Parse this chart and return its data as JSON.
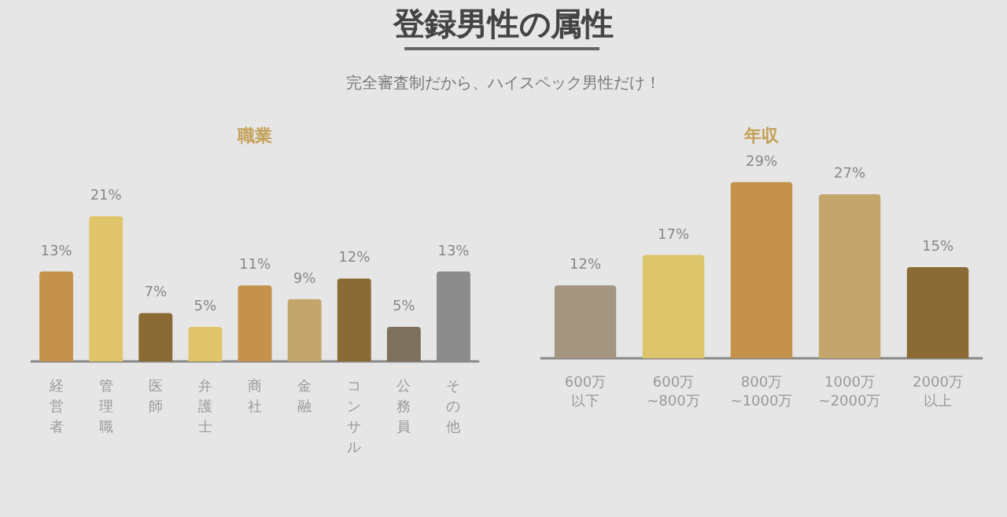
{
  "chart_data": [
    {
      "type": "other",
      "title": "登録男性の属性",
      "subtitle": "完全審査制だから、ハイスペック男性だけ！"
    },
    {
      "type": "bar",
      "title": "職業",
      "categories": [
        "経営者",
        "管理職",
        "医師",
        "弁護士",
        "商社",
        "金融",
        "コンサル",
        "公務員",
        "その他"
      ],
      "values": [
        13,
        21,
        7,
        5,
        11,
        9,
        12,
        5,
        13
      ],
      "value_labels": [
        "13%",
        "21%",
        "7%",
        "5%",
        "11%",
        "9%",
        "12%",
        "5%",
        "13%"
      ],
      "colors": [
        "#c4924a",
        "#e0c46a",
        "#8a6a35",
        "#e0c46a",
        "#c4924a",
        "#c2a66c",
        "#8a6a35",
        "#7d705c",
        "#8c8c8c"
      ]
    },
    {
      "type": "bar",
      "title": "年収",
      "categories": [
        "600万以下",
        "600万~800万",
        "800万~1000万",
        "1000万~2000万",
        "2000万以上"
      ],
      "values": [
        12,
        17,
        29,
        27,
        15
      ],
      "value_labels": [
        "12%",
        "17%",
        "29%",
        "27%",
        "15%"
      ],
      "colors": [
        "#a39580",
        "#dcc46a",
        "#c4924a",
        "#c2a66c",
        "#8a6a35"
      ]
    }
  ]
}
